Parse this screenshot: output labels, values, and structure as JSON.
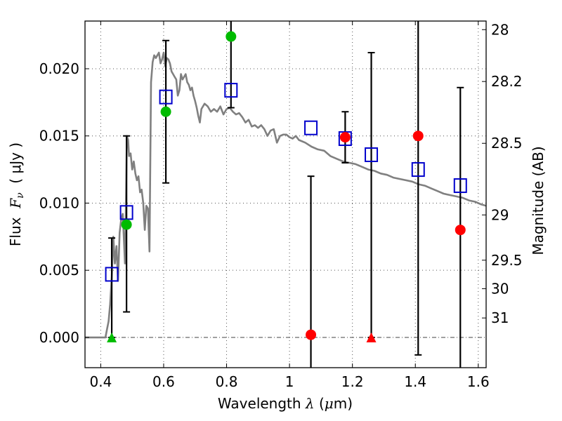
{
  "chart_data": {
    "type": "scatter",
    "xlabel": "Wavelength  λ (μm)",
    "xlabel_parts": {
      "prefix": "Wavelength  ",
      "symbol": "λ",
      "unit_open": " (",
      "unit_mu": "μ",
      "unit_rest": "m)"
    },
    "ylabel": "Flux  Fν  ( μJy )",
    "ylabel_parts": {
      "prefix": "Flux  ",
      "symbol": "F",
      "sub": "ν",
      "unit": "  ( μJy )"
    },
    "y2label": "Magnitude (AB)",
    "xlim": [
      0.35,
      1.625
    ],
    "ylim": [
      -0.00225,
      0.02355
    ],
    "grid": true,
    "xticks": [
      0.4,
      0.6,
      0.8,
      1.0,
      1.2,
      1.4,
      1.6
    ],
    "xtick_labels": [
      "0.4",
      "0.6",
      "0.8",
      "1",
      "1.2",
      "1.4",
      "1.6"
    ],
    "yticks": [
      0.0,
      0.005,
      0.01,
      0.015,
      0.02
    ],
    "ytick_labels": [
      "0.000",
      "0.005",
      "0.010",
      "0.015",
      "0.020"
    ],
    "y2ticks": [
      {
        "label": "28",
        "flux": 0.02291
      },
      {
        "label": "28.2",
        "flux": 0.01905
      },
      {
        "label": "28.5",
        "flux": 0.01445
      },
      {
        "label": "29",
        "flux": 0.00912
      },
      {
        "label": "29.5",
        "flux": 0.00575
      },
      {
        "label": "30",
        "flux": 0.00363
      },
      {
        "label": "31",
        "flux": 0.00145
      }
    ],
    "series": [
      {
        "name": "model-spectrum",
        "kind": "line",
        "color": "#808080",
        "x": [
          0.35,
          0.415,
          0.42,
          0.425,
          0.43,
          0.435,
          0.44,
          0.445,
          0.45,
          0.455,
          0.46,
          0.465,
          0.47,
          0.473,
          0.477,
          0.48,
          0.483,
          0.487,
          0.49,
          0.495,
          0.5,
          0.505,
          0.51,
          0.515,
          0.52,
          0.525,
          0.53,
          0.535,
          0.54,
          0.545,
          0.55,
          0.555,
          0.56,
          0.565,
          0.57,
          0.575,
          0.58,
          0.585,
          0.59,
          0.595,
          0.6,
          0.605,
          0.61,
          0.615,
          0.62,
          0.625,
          0.63,
          0.635,
          0.64,
          0.645,
          0.65,
          0.655,
          0.66,
          0.665,
          0.67,
          0.675,
          0.68,
          0.685,
          0.69,
          0.695,
          0.7,
          0.705,
          0.71,
          0.715,
          0.72,
          0.73,
          0.74,
          0.75,
          0.76,
          0.77,
          0.78,
          0.79,
          0.8,
          0.81,
          0.82,
          0.83,
          0.84,
          0.85,
          0.86,
          0.87,
          0.88,
          0.89,
          0.9,
          0.91,
          0.92,
          0.93,
          0.94,
          0.95,
          0.96,
          0.97,
          0.98,
          0.99,
          1.0,
          1.01,
          1.02,
          1.03,
          1.05,
          1.07,
          1.09,
          1.11,
          1.13,
          1.15,
          1.17,
          1.19,
          1.21,
          1.23,
          1.25,
          1.27,
          1.29,
          1.31,
          1.33,
          1.35,
          1.37,
          1.39,
          1.41,
          1.43,
          1.45,
          1.47,
          1.49,
          1.51,
          1.53,
          1.55,
          1.57,
          1.59,
          1.61,
          1.625
        ],
        "y": [
          0.0,
          0.0,
          0.0006,
          0.0012,
          0.0025,
          0.0045,
          0.0075,
          0.0055,
          0.0068,
          0.0042,
          0.0078,
          0.0088,
          0.0092,
          0.0076,
          0.0055,
          0.0097,
          0.015,
          0.0147,
          0.0135,
          0.0137,
          0.0125,
          0.0131,
          0.0122,
          0.0117,
          0.012,
          0.0108,
          0.011,
          0.01,
          0.008,
          0.0098,
          0.0096,
          0.0064,
          0.019,
          0.0205,
          0.021,
          0.0208,
          0.021,
          0.0212,
          0.0204,
          0.0207,
          0.0212,
          0.0202,
          0.0208,
          0.0207,
          0.0204,
          0.0198,
          0.0196,
          0.0194,
          0.0192,
          0.018,
          0.0184,
          0.0196,
          0.0192,
          0.0194,
          0.0196,
          0.019,
          0.0188,
          0.0184,
          0.0186,
          0.018,
          0.0176,
          0.0171,
          0.0165,
          0.016,
          0.017,
          0.0174,
          0.0172,
          0.0168,
          0.017,
          0.0168,
          0.0172,
          0.0166,
          0.017,
          0.0171,
          0.0168,
          0.0166,
          0.0167,
          0.0164,
          0.016,
          0.0162,
          0.0157,
          0.0158,
          0.0156,
          0.0158,
          0.0155,
          0.015,
          0.0154,
          0.0155,
          0.0145,
          0.015,
          0.0151,
          0.0151,
          0.0149,
          0.0148,
          0.015,
          0.0147,
          0.0145,
          0.0142,
          0.014,
          0.0139,
          0.0135,
          0.0133,
          0.0131,
          0.013,
          0.0129,
          0.0127,
          0.0125,
          0.0124,
          0.0122,
          0.0121,
          0.0119,
          0.0118,
          0.0117,
          0.0116,
          0.0114,
          0.0113,
          0.0111,
          0.0109,
          0.0107,
          0.0106,
          0.0105,
          0.0104,
          0.0102,
          0.0101,
          0.0099,
          0.0098
        ]
      },
      {
        "name": "model-photometry",
        "kind": "open-square",
        "color": "#0000cc",
        "x": [
          0.435,
          0.482,
          0.607,
          0.814,
          1.068,
          1.177,
          1.26,
          1.409,
          1.543
        ],
        "y": [
          0.0047,
          0.0093,
          0.0179,
          0.0184,
          0.0156,
          0.0148,
          0.0136,
          0.0125,
          0.0113
        ]
      },
      {
        "name": "detections-acs",
        "kind": "filled-circle",
        "color": "#00bb00",
        "x": [
          0.482,
          0.607,
          0.814
        ],
        "y": [
          0.0084,
          0.0168,
          0.0224
        ]
      },
      {
        "name": "detections-wfc3",
        "kind": "filled-circle",
        "color": "#ff0000",
        "x": [
          1.068,
          1.177,
          1.409,
          1.543
        ],
        "y": [
          0.0002,
          0.0149,
          0.015,
          0.008
        ]
      },
      {
        "name": "upper-limits",
        "kind": "filled-triangle",
        "x": [
          0.435,
          1.26
        ],
        "y": [
          0.0,
          0.0
        ],
        "colors": [
          "#00bb00",
          "#ff0000"
        ]
      }
    ],
    "errorbars": [
      {
        "x": 0.435,
        "low": 0.0,
        "high": 0.0074
      },
      {
        "x": 0.482,
        "low": 0.0019,
        "high": 0.015
      },
      {
        "x": 0.607,
        "low": 0.0115,
        "high": 0.0221
      },
      {
        "x": 0.814,
        "low": 0.0171,
        "high": 0.026
      },
      {
        "x": 1.068,
        "low": -0.003,
        "high": 0.012
      },
      {
        "x": 1.177,
        "low": 0.013,
        "high": 0.0168
      },
      {
        "x": 1.26,
        "low": 0.0,
        "high": 0.0212
      },
      {
        "x": 1.409,
        "low": -0.0013,
        "high": 0.026
      },
      {
        "x": 1.543,
        "low": -0.003,
        "high": 0.0186
      }
    ]
  }
}
